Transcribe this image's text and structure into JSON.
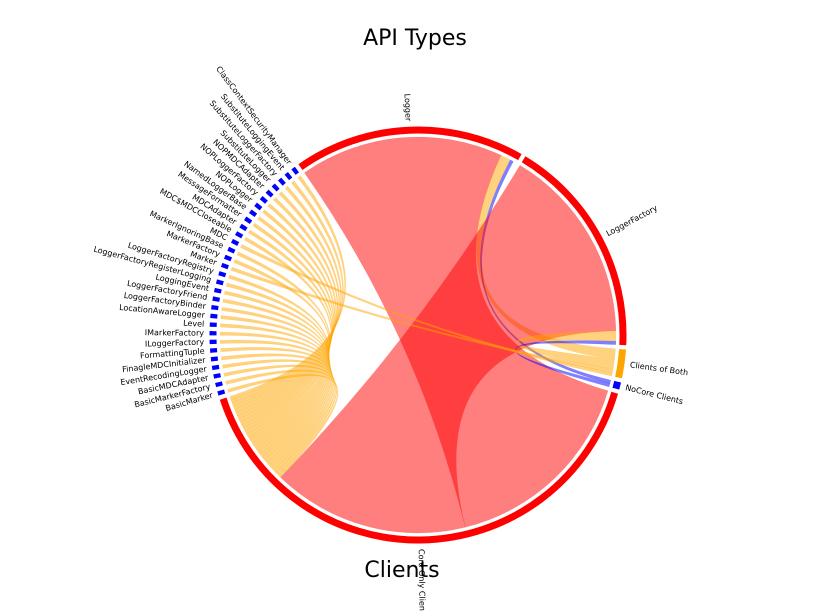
{
  "chart_data": {
    "type": "chord",
    "title": "API Types",
    "subtitle": "Clients",
    "nodes": [
      {
        "name": "Logger",
        "color": "#ff0000",
        "value": 65
      },
      {
        "name": "LoggerFactory",
        "color": "#ff0000",
        "value": 62
      },
      {
        "name": "Clients of Both",
        "color": "#ffa500",
        "value": 8
      },
      {
        "name": "NoCore Clients",
        "color": "#0000ff",
        "value": 2
      },
      {
        "name": "Core Only Clients",
        "color": "#ff0000",
        "value": 146
      },
      {
        "name": "BasicMarker",
        "color": "#0000ff",
        "value": 1.2
      },
      {
        "name": "BasicMarkerFactory",
        "color": "#0000ff",
        "value": 1.2
      },
      {
        "name": "BasicMDCAdapter",
        "color": "#0000ff",
        "value": 1.2
      },
      {
        "name": "EventRecodingLogger",
        "color": "#0000ff",
        "value": 1.2
      },
      {
        "name": "FinagleMDCInitializer",
        "color": "#0000ff",
        "value": 1.2
      },
      {
        "name": "FormattingTuple",
        "color": "#0000ff",
        "value": 1.2
      },
      {
        "name": "ILoggerFactory",
        "color": "#0000ff",
        "value": 1.2
      },
      {
        "name": "IMarkerFactory",
        "color": "#0000ff",
        "value": 1.2
      },
      {
        "name": "Level",
        "color": "#0000ff",
        "value": 1.2
      },
      {
        "name": "LocationAwareLogger",
        "color": "#0000ff",
        "value": 1.2
      },
      {
        "name": "LoggerFactoryBinder",
        "color": "#0000ff",
        "value": 1.2
      },
      {
        "name": "LoggerFactoryFriend",
        "color": "#0000ff",
        "value": 1.2
      },
      {
        "name": "LoggingEvent",
        "color": "#0000ff",
        "value": 1.2
      },
      {
        "name": "LoggerFactoryRegisterLogging",
        "color": "#0000ff",
        "value": 1.2
      },
      {
        "name": "LoggerFactoryRegistry",
        "color": "#0000ff",
        "value": 1.2
      },
      {
        "name": "Marker",
        "color": "#0000ff",
        "value": 1.2
      },
      {
        "name": "MarkerFactory",
        "color": "#0000ff",
        "value": 1.2
      },
      {
        "name": "MarkerIgnoringBase",
        "color": "#0000ff",
        "value": 1.2
      },
      {
        "name": "MDC",
        "color": "#0000ff",
        "value": 1.2
      },
      {
        "name": "MDC$MDCCloseable",
        "color": "#0000ff",
        "value": 1.2
      },
      {
        "name": "MDCAdapter",
        "color": "#0000ff",
        "value": 1.2
      },
      {
        "name": "MessageFormatter",
        "color": "#0000ff",
        "value": 1.2
      },
      {
        "name": "NamedLoggerBase",
        "color": "#0000ff",
        "value": 1.2
      },
      {
        "name": "NOPLogger",
        "color": "#0000ff",
        "value": 1.2
      },
      {
        "name": "NOPLoggerFactory",
        "color": "#0000ff",
        "value": 1.2
      },
      {
        "name": "NOPMDCAdapter",
        "color": "#0000ff",
        "value": 1.2
      },
      {
        "name": "SubstituteLogger",
        "color": "#0000ff",
        "value": 1.2
      },
      {
        "name": "SubstituteLoggerFactory",
        "color": "#0000ff",
        "value": 1.2
      },
      {
        "name": "SubstituteLoggingEvent",
        "color": "#0000ff",
        "value": 1.2
      },
      {
        "name": "ClassContextSecurityManager",
        "color": "#0000ff",
        "value": 1.2
      }
    ],
    "links": [
      {
        "source": 0,
        "target": 4,
        "value": 60,
        "color": "#ff0000"
      },
      {
        "source": 0,
        "target": 2,
        "value": 3,
        "color": "#ffa500"
      },
      {
        "source": 0,
        "target": 3,
        "value": 1,
        "color": "#0000ff"
      },
      {
        "source": 1,
        "target": 4,
        "value": 58,
        "color": "#ff0000"
      },
      {
        "source": 1,
        "target": 2,
        "value": 3,
        "color": "#ffa500"
      },
      {
        "source": 1,
        "target": 3,
        "value": 1,
        "color": "#0000ff"
      },
      {
        "source": 5,
        "target": 4,
        "value": 1,
        "color": "#ffa500"
      },
      {
        "source": 6,
        "target": 4,
        "value": 1,
        "color": "#ffa500"
      },
      {
        "source": 7,
        "target": 4,
        "value": 1,
        "color": "#ffa500"
      },
      {
        "source": 8,
        "target": 4,
        "value": 1,
        "color": "#ffa500"
      },
      {
        "source": 9,
        "target": 4,
        "value": 1,
        "color": "#ffa500"
      },
      {
        "source": 10,
        "target": 4,
        "value": 1,
        "color": "#ffa500"
      },
      {
        "source": 11,
        "target": 4,
        "value": 1,
        "color": "#ffa500"
      },
      {
        "source": 12,
        "target": 4,
        "value": 1,
        "color": "#ffa500"
      },
      {
        "source": 13,
        "target": 4,
        "value": 1,
        "color": "#ffa500"
      },
      {
        "source": 14,
        "target": 4,
        "value": 1,
        "color": "#ffa500"
      },
      {
        "source": 15,
        "target": 4,
        "value": 1,
        "color": "#ffa500"
      },
      {
        "source": 16,
        "target": 4,
        "value": 1,
        "color": "#ffa500"
      },
      {
        "source": 17,
        "target": 4,
        "value": 1,
        "color": "#ffa500"
      },
      {
        "source": 18,
        "target": 4,
        "value": 1,
        "color": "#ffa500"
      },
      {
        "source": 19,
        "target": 4,
        "value": 1,
        "color": "#ffa500"
      },
      {
        "source": 20,
        "target": 2,
        "value": 1,
        "color": "#ffa500"
      },
      {
        "source": 21,
        "target": 4,
        "value": 1,
        "color": "#ffa500"
      },
      {
        "source": 22,
        "target": 4,
        "value": 1,
        "color": "#ffa500"
      },
      {
        "source": 23,
        "target": 2,
        "value": 1,
        "color": "#ffa500"
      },
      {
        "source": 24,
        "target": 4,
        "value": 1,
        "color": "#ffa500"
      },
      {
        "source": 25,
        "target": 4,
        "value": 1,
        "color": "#ffa500"
      },
      {
        "source": 26,
        "target": 4,
        "value": 1,
        "color": "#ffa500"
      },
      {
        "source": 27,
        "target": 4,
        "value": 1,
        "color": "#ffa500"
      },
      {
        "source": 28,
        "target": 4,
        "value": 1,
        "color": "#ffa500"
      },
      {
        "source": 29,
        "target": 4,
        "value": 1,
        "color": "#ffa500"
      },
      {
        "source": 30,
        "target": 4,
        "value": 1,
        "color": "#ffa500"
      },
      {
        "source": 31,
        "target": 4,
        "value": 1,
        "color": "#ffa500"
      },
      {
        "source": 32,
        "target": 4,
        "value": 1,
        "color": "#ffa500"
      },
      {
        "source": 33,
        "target": 4,
        "value": 1,
        "color": "#ffa500"
      },
      {
        "source": 34,
        "target": 4,
        "value": 1,
        "color": "#ffa500"
      }
    ]
  }
}
